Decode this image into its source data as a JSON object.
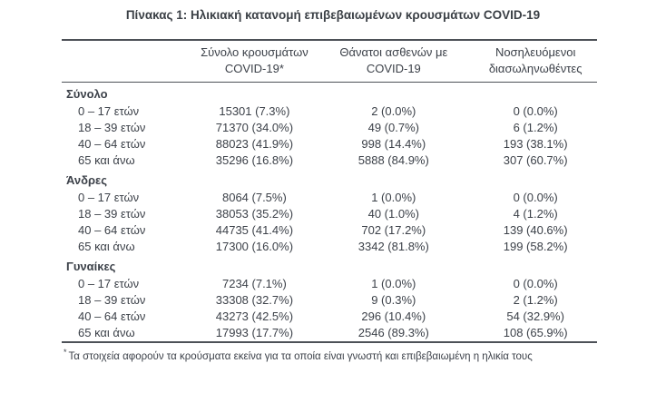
{
  "page": {
    "title": "Πίνακας 1: Ηλικιακή κατανομή επιβεβαιωμένων κρουσμάτων COVID-19",
    "footnote_marker": "*",
    "footnote": "Τα στοιχεία αφορούν τα κρούσματα εκείνα για τα οποία είναι γνωστή και επιβεβαιωμένη η ηλικία τους"
  },
  "colors": {
    "text": "#3c4149",
    "rule": "#4d5157",
    "background": "#ffffff"
  },
  "table": {
    "columns": [
      {
        "line1": "Σύνολο κρουσμάτων",
        "line2": "COVID-19*"
      },
      {
        "line1": "Θάνατοι ασθενών με",
        "line2": "COVID-19"
      },
      {
        "line1": "Νοσηλευόμενοι",
        "line2": "διασωληνωθέντες"
      }
    ],
    "sections": [
      {
        "label": "Σύνολο",
        "rows": [
          {
            "age": "0 – 17 ετών",
            "cases": "15301 (7.3%)",
            "deaths": "2 (0.0%)",
            "intubated": "0 (0.0%)"
          },
          {
            "age": "18 – 39 ετών",
            "cases": "71370 (34.0%)",
            "deaths": "49 (0.7%)",
            "intubated": "6 (1.2%)"
          },
          {
            "age": "40 – 64 ετών",
            "cases": "88023 (41.9%)",
            "deaths": "998 (14.4%)",
            "intubated": "193 (38.1%)"
          },
          {
            "age": "65 και άνω",
            "cases": "35296 (16.8%)",
            "deaths": "5888 (84.9%)",
            "intubated": "307 (60.7%)"
          }
        ]
      },
      {
        "label": "Άνδρες",
        "rows": [
          {
            "age": "0 – 17 ετών",
            "cases": "8064 (7.5%)",
            "deaths": "1 (0.0%)",
            "intubated": "0 (0.0%)"
          },
          {
            "age": "18 – 39 ετών",
            "cases": "38053 (35.2%)",
            "deaths": "40 (1.0%)",
            "intubated": "4 (1.2%)"
          },
          {
            "age": "40 – 64 ετών",
            "cases": "44735 (41.4%)",
            "deaths": "702 (17.2%)",
            "intubated": "139 (40.6%)"
          },
          {
            "age": "65 και άνω",
            "cases": "17300 (16.0%)",
            "deaths": "3342 (81.8%)",
            "intubated": "199 (58.2%)"
          }
        ]
      },
      {
        "label": "Γυναίκες",
        "rows": [
          {
            "age": "0 – 17 ετών",
            "cases": "7234 (7.1%)",
            "deaths": "1 (0.0%)",
            "intubated": "0 (0.0%)"
          },
          {
            "age": "18 – 39 ετών",
            "cases": "33308 (32.7%)",
            "deaths": "9 (0.3%)",
            "intubated": "2 (1.2%)"
          },
          {
            "age": "40 – 64 ετών",
            "cases": "43273 (42.5%)",
            "deaths": "296 (10.4%)",
            "intubated": "54 (32.9%)"
          },
          {
            "age": "65 και άνω",
            "cases": "17993 (17.7%)",
            "deaths": "2546 (89.3%)",
            "intubated": "108 (65.9%)"
          }
        ]
      }
    ]
  }
}
